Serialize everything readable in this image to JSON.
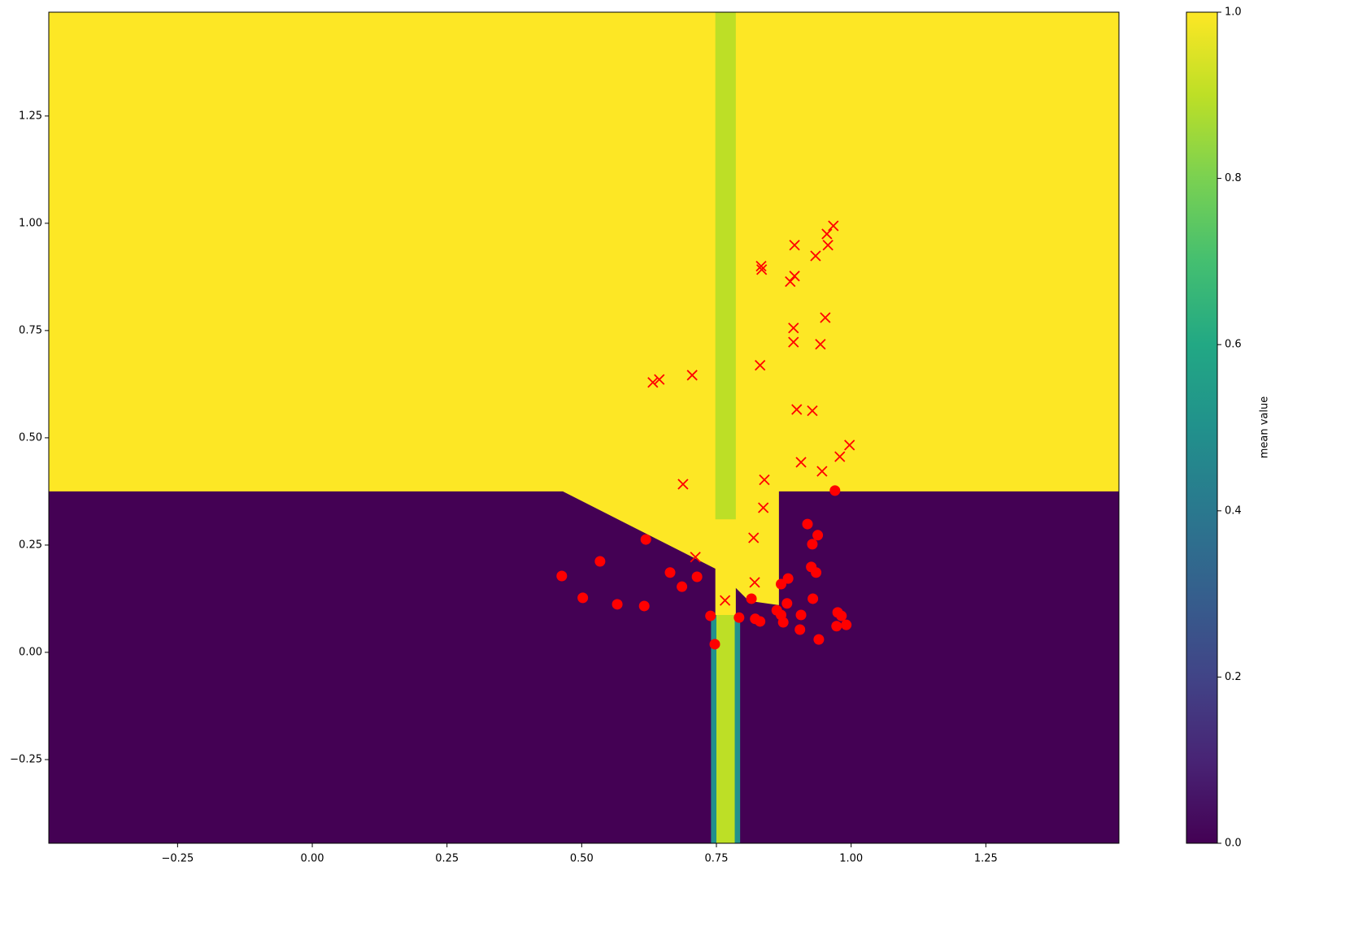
{
  "chart_data": {
    "type": "hexbin",
    "xlim": [
      -0.489,
      1.497
    ],
    "ylim": [
      -0.445,
      1.492
    ],
    "xticks": [
      {
        "value": -0.25,
        "label": "−0.25"
      },
      {
        "value": 0,
        "label": "0.00"
      },
      {
        "value": 0.25,
        "label": "0.25"
      },
      {
        "value": 0.5,
        "label": "0.50"
      },
      {
        "value": 0.75,
        "label": "0.75"
      },
      {
        "value": 1,
        "label": "1.00"
      },
      {
        "value": 1.25,
        "label": "1.25"
      }
    ],
    "yticks": [
      {
        "value": -0.25,
        "label": "−0.25"
      },
      {
        "value": 0,
        "label": "0.00"
      },
      {
        "value": 0.25,
        "label": "0.25"
      },
      {
        "value": 0.5,
        "label": "0.50"
      },
      {
        "value": 0.75,
        "label": "0.75"
      },
      {
        "value": 1,
        "label": "1.00"
      },
      {
        "value": 1.25,
        "label": "1.25"
      }
    ],
    "colormap": "viridis",
    "clim": [
      0,
      1
    ],
    "cticks": [
      {
        "value": 0,
        "label": "0.0"
      },
      {
        "value": 0.2,
        "label": "0.2"
      },
      {
        "value": 0.4,
        "label": "0.4"
      },
      {
        "value": 0.6,
        "label": "0.6"
      },
      {
        "value": 0.8,
        "label": "0.8"
      },
      {
        "value": 1,
        "label": "1.0"
      }
    ],
    "colorbar_label": "mean value",
    "regions": [
      {
        "value": 1,
        "polygon": [
          [
            -0.489,
            1.492
          ],
          [
            1.497,
            1.492
          ],
          [
            1.497,
            -0.445
          ],
          [
            -0.489,
            -0.445
          ]
        ]
      },
      {
        "value": 0,
        "polygon": [
          [
            -0.489,
            0.375
          ],
          [
            0.465,
            0.375
          ],
          [
            0.748,
            0.195
          ],
          [
            0.748,
            -0.445
          ],
          [
            -0.489,
            -0.445
          ]
        ]
      },
      {
        "value": 0,
        "polygon": [
          [
            0.866,
            0.375
          ],
          [
            1.497,
            0.375
          ],
          [
            1.497,
            -0.445
          ],
          [
            0.786,
            -0.445
          ],
          [
            0.786,
            0.15
          ],
          [
            0.81,
            0.12
          ],
          [
            0.866,
            0.11
          ]
        ]
      },
      {
        "value": 0.5,
        "polygon": [
          [
            0.74,
            0.087
          ],
          [
            0.794,
            0.087
          ],
          [
            0.794,
            -0.445
          ],
          [
            0.74,
            -0.445
          ]
        ]
      },
      {
        "value": 0.9,
        "polygon": [
          [
            0.748,
            1.492
          ],
          [
            0.786,
            1.492
          ],
          [
            0.786,
            0.31
          ],
          [
            0.748,
            0.31
          ]
        ]
      },
      {
        "value": 0.9,
        "polygon": [
          [
            0.75,
            0.087
          ],
          [
            0.784,
            0.087
          ],
          [
            0.784,
            -0.445
          ],
          [
            0.75,
            -0.445
          ]
        ]
      }
    ],
    "series": [
      {
        "marker": "o",
        "color": "#ff0000",
        "x": [
          0.97,
          0.919,
          0.938,
          0.928,
          0.619,
          0.534,
          0.926,
          0.935,
          0.664,
          0.463,
          0.714,
          0.883,
          0.87,
          0.686,
          0.502,
          0.815,
          0.929,
          0.881,
          0.566,
          0.616,
          0.862,
          0.87,
          0.907,
          0.975,
          0.982,
          0.739,
          0.792,
          0.822,
          0.831,
          0.874,
          0.991,
          0.973,
          0.905,
          0.94,
          0.747
        ],
        "y": [
          0.377,
          0.299,
          0.273,
          0.252,
          0.263,
          0.212,
          0.199,
          0.186,
          0.186,
          0.178,
          0.176,
          0.172,
          0.159,
          0.153,
          0.127,
          0.125,
          0.125,
          0.114,
          0.112,
          0.108,
          0.098,
          0.087,
          0.087,
          0.093,
          0.085,
          0.085,
          0.081,
          0.078,
          0.072,
          0.07,
          0.064,
          0.061,
          0.053,
          0.03,
          0.019
        ]
      },
      {
        "marker": "x",
        "color": "#ff0000",
        "x": [
          0.967,
          0.955,
          0.957,
          0.895,
          0.934,
          0.833,
          0.834,
          0.895,
          0.887,
          0.952,
          0.893,
          0.893,
          0.943,
          0.831,
          0.705,
          0.644,
          0.632,
          0.899,
          0.928,
          0.997,
          0.979,
          0.907,
          0.946,
          0.839,
          0.688,
          0.837,
          0.819,
          0.711,
          0.821,
          0.766
        ],
        "y": [
          0.994,
          0.975,
          0.949,
          0.949,
          0.924,
          0.9,
          0.892,
          0.877,
          0.864,
          0.78,
          0.756,
          0.723,
          0.718,
          0.669,
          0.646,
          0.636,
          0.629,
          0.566,
          0.563,
          0.483,
          0.456,
          0.443,
          0.422,
          0.402,
          0.392,
          0.337,
          0.267,
          0.222,
          0.163,
          0.121
        ]
      }
    ]
  }
}
